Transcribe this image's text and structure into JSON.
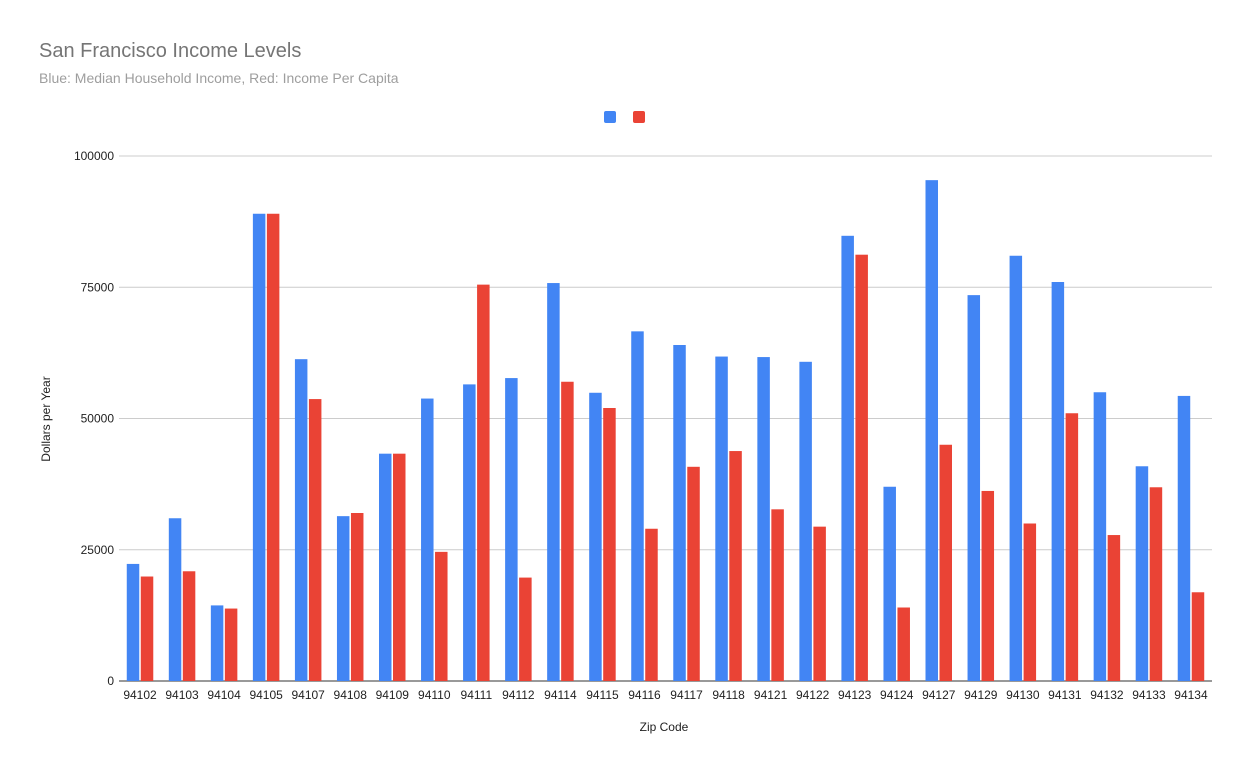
{
  "chart_data": {
    "type": "bar",
    "title": "San Francisco Income Levels",
    "subtitle": "Blue: Median Household Income, Red: Income Per Capita",
    "xlabel": "Zip Code",
    "ylabel": "Dollars per Year",
    "ylim": [
      0,
      100000
    ],
    "yticks": [
      0,
      25000,
      50000,
      75000,
      100000
    ],
    "grid": true,
    "legend_position": "top",
    "categories": [
      "94102",
      "94103",
      "94104",
      "94105",
      "94107",
      "94108",
      "94109",
      "94110",
      "94111",
      "94112",
      "94114",
      "94115",
      "94116",
      "94117",
      "94118",
      "94121",
      "94122",
      "94123",
      "94124",
      "94127",
      "94129",
      "94130",
      "94131",
      "94132",
      "94133",
      "94134"
    ],
    "series": [
      {
        "color": "#4285f4",
        "values": [
          22300,
          31000,
          14400,
          89000,
          61300,
          31400,
          43300,
          53800,
          56500,
          57700,
          75800,
          54900,
          66600,
          64000,
          61800,
          61700,
          60800,
          84800,
          37000,
          95400,
          73500,
          81000,
          76000,
          55000,
          40900,
          54300
        ]
      },
      {
        "color": "#ea4335",
        "values": [
          19900,
          20900,
          13800,
          89000,
          53700,
          32000,
          43300,
          24600,
          75500,
          19700,
          57000,
          52000,
          29000,
          40800,
          43800,
          32700,
          29400,
          81200,
          14000,
          45000,
          36200,
          30000,
          51000,
          27800,
          36900,
          16900
        ]
      }
    ]
  }
}
